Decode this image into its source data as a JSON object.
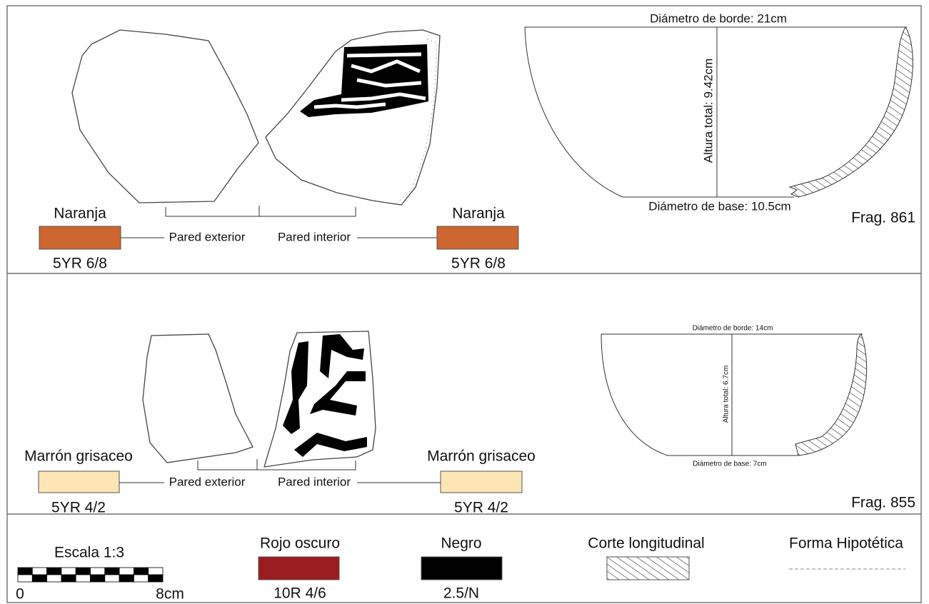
{
  "panels": [
    {
      "exterior_color": {
        "name": "Naranja",
        "code": "5YR 6/8"
      },
      "interior_color": {
        "name": "Naranja",
        "code": "5YR 6/8"
      },
      "labels": {
        "exterior": "Pared exterior",
        "interior": "Pared interior"
      },
      "profile": {
        "rim": "Diámetro de borde: 21cm",
        "height": "Altura total: 9.42cm",
        "base": "Diámetro de base: 10.5cm"
      },
      "fragment": "Frag. 861"
    },
    {
      "exterior_color": {
        "name": "Marrón grisaceo",
        "code": "5YR 4/2"
      },
      "interior_color": {
        "name": "Marrón grisaceo",
        "code": "5YR 4/2"
      },
      "labels": {
        "exterior": "Pared exterior",
        "interior": "Pared interior"
      },
      "profile": {
        "rim": "Diámetro de borde: 14cm",
        "height": "Altura total: 6.7cm",
        "base": "Diámetro de base: 7cm"
      },
      "fragment": "Frag. 855"
    }
  ],
  "legend": {
    "scale": {
      "title": "Escala 1:3",
      "start": "0",
      "end": "8cm"
    },
    "colors": [
      {
        "name": "Rojo oscuro",
        "code": "10R 4/6"
      },
      {
        "name": "Negro",
        "code": "2.5/N"
      }
    ],
    "section": "Corte longitudinal",
    "hypothetical": "Forma Hipotética"
  }
}
